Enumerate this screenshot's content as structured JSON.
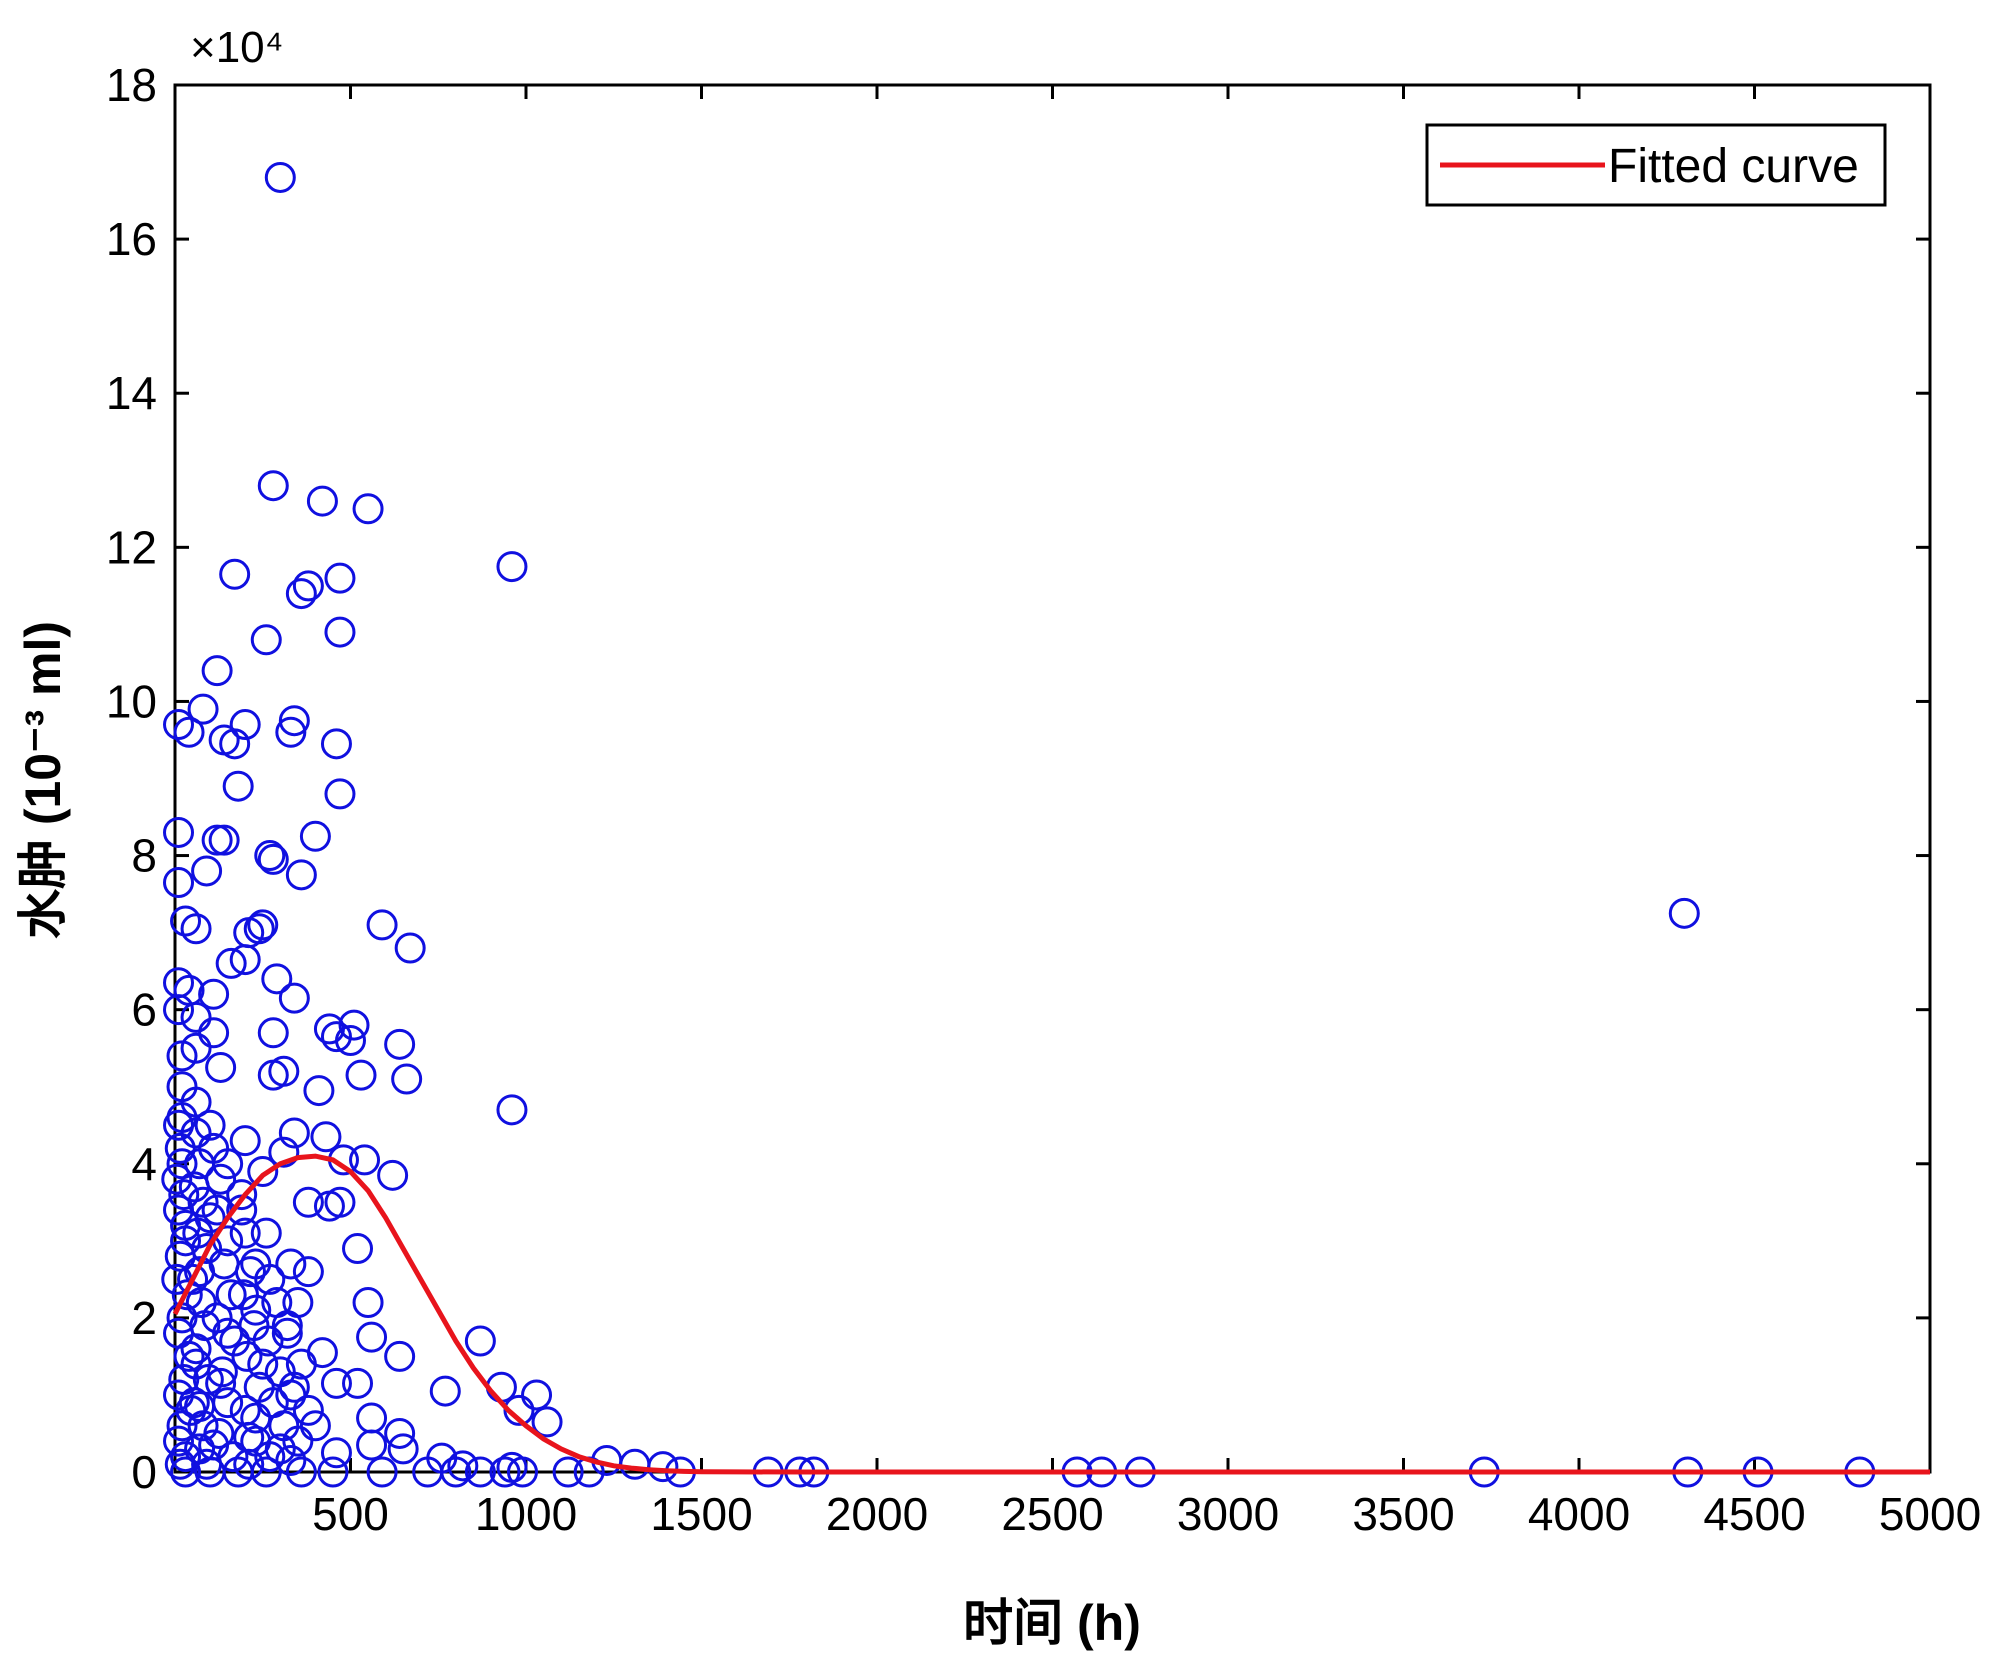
{
  "chart_data": {
    "type": "scatter",
    "xlabel": "时间 (h)",
    "ylabel": "水肿 (10⁻³ ml)",
    "y_scale_label": "×10⁴",
    "xlim": [
      0,
      5000
    ],
    "ylim": [
      0,
      180000
    ],
    "xticks": [
      500,
      1000,
      1500,
      2000,
      2500,
      3000,
      3500,
      4000,
      4500,
      5000
    ],
    "yticks": [
      0,
      20000,
      40000,
      60000,
      80000,
      100000,
      120000,
      140000,
      160000,
      180000
    ],
    "ytick_labels": [
      "0",
      "2",
      "4",
      "6",
      "8",
      "10",
      "12",
      "14",
      "16",
      "18"
    ],
    "grid": false,
    "legend": {
      "position": "top-right",
      "entries": [
        "Fitted curve"
      ]
    },
    "colors": {
      "points": "#1010e0",
      "curve": "#e8141c"
    },
    "series": [
      {
        "kind": "scatter",
        "marker": "circle-open",
        "points": [
          [
            300,
            168000
          ],
          [
            280,
            128000
          ],
          [
            420,
            126000
          ],
          [
            550,
            125000
          ],
          [
            170,
            116500
          ],
          [
            470,
            116000
          ],
          [
            380,
            115000
          ],
          [
            360,
            114000
          ],
          [
            960,
            117500
          ],
          [
            260,
            108000
          ],
          [
            470,
            109000
          ],
          [
            120,
            104000
          ],
          [
            80,
            99000
          ],
          [
            200,
            97000
          ],
          [
            340,
            97500
          ],
          [
            330,
            96000
          ],
          [
            10,
            97000
          ],
          [
            40,
            96000
          ],
          [
            140,
            95000
          ],
          [
            170,
            94500
          ],
          [
            460,
            94500
          ],
          [
            180,
            89000
          ],
          [
            470,
            88000
          ],
          [
            10,
            83000
          ],
          [
            120,
            82000
          ],
          [
            140,
            82000
          ],
          [
            400,
            82500
          ],
          [
            270,
            80000
          ],
          [
            280,
            79500
          ],
          [
            360,
            77500
          ],
          [
            90,
            78000
          ],
          [
            10,
            76500
          ],
          [
            30,
            71500
          ],
          [
            60,
            70500
          ],
          [
            240,
            70500
          ],
          [
            250,
            71000
          ],
          [
            210,
            70000
          ],
          [
            590,
            71000
          ],
          [
            670,
            68000
          ],
          [
            160,
            66000
          ],
          [
            200,
            66500
          ],
          [
            290,
            64000
          ],
          [
            10,
            63500
          ],
          [
            40,
            62500
          ],
          [
            110,
            62000
          ],
          [
            340,
            61500
          ],
          [
            10,
            60000
          ],
          [
            60,
            59000
          ],
          [
            440,
            57500
          ],
          [
            510,
            58000
          ],
          [
            110,
            57000
          ],
          [
            280,
            57000
          ],
          [
            460,
            56500
          ],
          [
            500,
            56000
          ],
          [
            640,
            55500
          ],
          [
            60,
            55000
          ],
          [
            20,
            54000
          ],
          [
            130,
            52500
          ],
          [
            280,
            51500
          ],
          [
            310,
            52000
          ],
          [
            530,
            51500
          ],
          [
            660,
            51000
          ],
          [
            410,
            49500
          ],
          [
            20,
            50000
          ],
          [
            60,
            48000
          ],
          [
            960,
            47000
          ],
          [
            20,
            46000
          ],
          [
            100,
            45000
          ],
          [
            340,
            44000
          ],
          [
            200,
            43000
          ],
          [
            430,
            43500
          ],
          [
            310,
            41500
          ],
          [
            540,
            40500
          ],
          [
            480,
            40500
          ],
          [
            620,
            38500
          ],
          [
            150,
            40000
          ],
          [
            250,
            39000
          ],
          [
            380,
            35000
          ],
          [
            440,
            34500
          ],
          [
            470,
            35000
          ],
          [
            190,
            34000
          ],
          [
            100,
            33000
          ],
          [
            30,
            32000
          ],
          [
            520,
            29000
          ],
          [
            380,
            26000
          ],
          [
            230,
            27000
          ],
          [
            70,
            26000
          ],
          [
            550,
            22000
          ],
          [
            560,
            17500
          ],
          [
            640,
            15000
          ],
          [
            870,
            17000
          ],
          [
            230,
            21000
          ],
          [
            320,
            19000
          ],
          [
            150,
            18000
          ],
          [
            60,
            16000
          ],
          [
            420,
            15500
          ],
          [
            250,
            14000
          ],
          [
            460,
            11500
          ],
          [
            520,
            11500
          ],
          [
            770,
            10500
          ],
          [
            930,
            11000
          ],
          [
            1030,
            10000
          ],
          [
            130,
            11500
          ],
          [
            330,
            10000
          ],
          [
            980,
            8000
          ],
          [
            560,
            7000
          ],
          [
            1060,
            6500
          ],
          [
            70,
            8500
          ],
          [
            230,
            7000
          ],
          [
            400,
            6000
          ],
          [
            640,
            5000
          ],
          [
            210,
            4500
          ],
          [
            560,
            3500
          ],
          [
            650,
            3000
          ],
          [
            460,
            2500
          ],
          [
            110,
            3500
          ],
          [
            300,
            3000
          ],
          [
            760,
            1800
          ],
          [
            820,
            800
          ],
          [
            960,
            600
          ],
          [
            1230,
            1500
          ],
          [
            1310,
            1000
          ],
          [
            1390,
            700
          ],
          [
            1440,
            0
          ],
          [
            1120,
            0
          ],
          [
            1180,
            0
          ],
          [
            990,
            0
          ],
          [
            940,
            0
          ],
          [
            870,
            0
          ],
          [
            800,
            0
          ],
          [
            720,
            0
          ],
          [
            590,
            0
          ],
          [
            450,
            0
          ],
          [
            360,
            0
          ],
          [
            260,
            0
          ],
          [
            180,
            0
          ],
          [
            100,
            0
          ],
          [
            30,
            0
          ],
          [
            1690,
            0
          ],
          [
            1780,
            0
          ],
          [
            1820,
            0
          ],
          [
            2570,
            0
          ],
          [
            2640,
            0
          ],
          [
            2750,
            0
          ],
          [
            3730,
            0
          ],
          [
            4310,
            0
          ],
          [
            4510,
            0
          ],
          [
            4800,
            0
          ],
          [
            4300,
            72500
          ],
          [
            10,
            45000
          ],
          [
            15,
            42000
          ],
          [
            20,
            40000
          ],
          [
            5,
            38000
          ],
          [
            25,
            36000
          ],
          [
            10,
            34000
          ],
          [
            30,
            30000
          ],
          [
            15,
            28000
          ],
          [
            5,
            25000
          ],
          [
            35,
            23000
          ],
          [
            20,
            20000
          ],
          [
            10,
            18000
          ],
          [
            40,
            15000
          ],
          [
            25,
            12000
          ],
          [
            10,
            10000
          ],
          [
            45,
            8000
          ],
          [
            20,
            6000
          ],
          [
            10,
            4000
          ],
          [
            30,
            2000
          ],
          [
            15,
            1000
          ],
          [
            60,
            44000
          ],
          [
            70,
            40000
          ],
          [
            55,
            37000
          ],
          [
            80,
            35000
          ],
          [
            65,
            31000
          ],
          [
            90,
            29000
          ],
          [
            50,
            25000
          ],
          [
            75,
            22000
          ],
          [
            85,
            19000
          ],
          [
            60,
            14000
          ],
          [
            95,
            12000
          ],
          [
            55,
            9000
          ],
          [
            80,
            6000
          ],
          [
            70,
            3000
          ],
          [
            90,
            1000
          ],
          [
            110,
            42000
          ],
          [
            130,
            38000
          ],
          [
            120,
            34000
          ],
          [
            150,
            30000
          ],
          [
            140,
            27000
          ],
          [
            160,
            23000
          ],
          [
            120,
            20000
          ],
          [
            170,
            17000
          ],
          [
            135,
            13000
          ],
          [
            150,
            9000
          ],
          [
            125,
            5000
          ],
          [
            165,
            2000
          ],
          [
            190,
            36000
          ],
          [
            200,
            31000
          ],
          [
            215,
            26000
          ],
          [
            195,
            23000
          ],
          [
            225,
            19000
          ],
          [
            205,
            15000
          ],
          [
            240,
            11000
          ],
          [
            200,
            8000
          ],
          [
            230,
            4000
          ],
          [
            210,
            1000
          ],
          [
            260,
            31000
          ],
          [
            270,
            25000
          ],
          [
            290,
            22000
          ],
          [
            265,
            17000
          ],
          [
            300,
            13000
          ],
          [
            280,
            9000
          ],
          [
            310,
            6000
          ],
          [
            270,
            2000
          ],
          [
            330,
            27000
          ],
          [
            350,
            22000
          ],
          [
            320,
            18000
          ],
          [
            360,
            14000
          ],
          [
            340,
            11000
          ],
          [
            380,
            8000
          ],
          [
            350,
            4000
          ],
          [
            330,
            1500
          ]
        ]
      },
      {
        "kind": "line",
        "name": "Fitted curve",
        "x": [
          0,
          50,
          100,
          150,
          200,
          250,
          300,
          350,
          400,
          450,
          500,
          550,
          600,
          650,
          700,
          750,
          800,
          850,
          900,
          950,
          1000,
          1050,
          1100,
          1150,
          1200,
          1250,
          1300,
          1350,
          1400,
          1450,
          1500,
          1600,
          1800,
          2000,
          2500,
          3000,
          3500,
          4000,
          4500,
          5000
        ],
        "y": [
          20500,
          25000,
          29500,
          33000,
          36000,
          38500,
          40000,
          40800,
          41000,
          40500,
          39000,
          36500,
          33000,
          29000,
          25000,
          21000,
          17000,
          13500,
          10500,
          8000,
          6000,
          4300,
          3000,
          2000,
          1300,
          800,
          500,
          300,
          150,
          80,
          40,
          10,
          0,
          0,
          0,
          0,
          0,
          0,
          0,
          0
        ]
      }
    ]
  }
}
